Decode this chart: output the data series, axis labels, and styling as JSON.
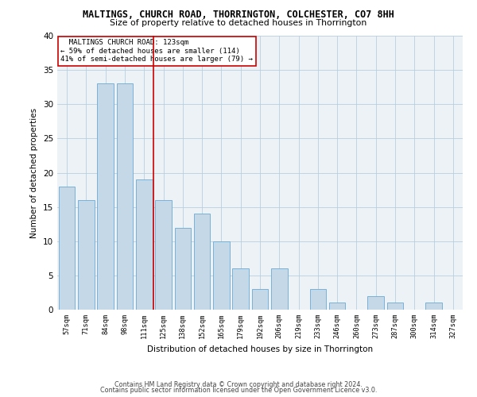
{
  "title": "MALTINGS, CHURCH ROAD, THORRINGTON, COLCHESTER, CO7 8HH",
  "subtitle": "Size of property relative to detached houses in Thorrington",
  "xlabel": "Distribution of detached houses by size in Thorrington",
  "ylabel": "Number of detached properties",
  "categories": [
    "57sqm",
    "71sqm",
    "84sqm",
    "98sqm",
    "111sqm",
    "125sqm",
    "138sqm",
    "152sqm",
    "165sqm",
    "179sqm",
    "192sqm",
    "206sqm",
    "219sqm",
    "233sqm",
    "246sqm",
    "260sqm",
    "273sqm",
    "287sqm",
    "300sqm",
    "314sqm",
    "327sqm"
  ],
  "values": [
    18,
    16,
    33,
    33,
    19,
    16,
    12,
    14,
    10,
    6,
    3,
    6,
    0,
    3,
    1,
    0,
    2,
    1,
    0,
    1,
    0
  ],
  "bar_color": "#c5d8e8",
  "bar_edge_color": "#6aaad4",
  "highlight_label": "MALTINGS CHURCH ROAD: 123sqm",
  "highlight_smaller_pct": "59%",
  "highlight_smaller_n": 114,
  "highlight_larger_pct": "41%",
  "highlight_larger_n": 79,
  "vline_color": "#cc0000",
  "annotation_box_color": "#cc0000",
  "ylim": [
    0,
    40
  ],
  "yticks": [
    0,
    5,
    10,
    15,
    20,
    25,
    30,
    35,
    40
  ],
  "footer_line1": "Contains HM Land Registry data © Crown copyright and database right 2024.",
  "footer_line2": "Contains public sector information licensed under the Open Government Licence v3.0.",
  "plot_bg_color": "#edf2f7"
}
